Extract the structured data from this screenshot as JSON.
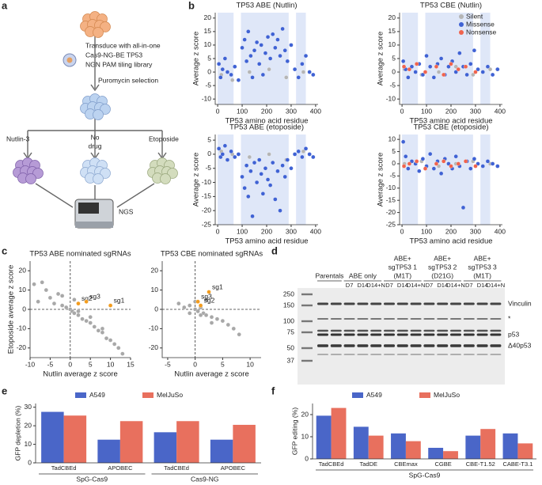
{
  "panel_labels": [
    "a",
    "b",
    "c",
    "d",
    "e",
    "f"
  ],
  "diagram": {
    "transduce": [
      "Transduce with all-in-one",
      "Cas9-NG-BE TP53",
      "NGN PAM tiling library"
    ],
    "selection": "Puromycin selection",
    "branches": [
      [
        "Nutlin-3"
      ],
      [
        "No",
        "drug"
      ],
      [
        "Etoposide"
      ]
    ],
    "readout": "NGS"
  },
  "blot": {
    "groups": [
      [
        "Parentals"
      ],
      [
        "ABE only"
      ],
      [
        "ABE+",
        "sgTP53 1",
        "(M1T)"
      ],
      [
        "ABE+",
        "sgTP53 2",
        "(D21G)"
      ],
      [
        "ABE+",
        "sgTP53 3",
        "(M1T)"
      ]
    ],
    "lane_labels": [
      "D7",
      "D14",
      "D14+N"
    ],
    "markers": [
      250,
      150,
      100,
      75,
      50,
      37
    ],
    "bands": [
      "Vinculin",
      "*",
      "p53",
      "Δ40p53"
    ]
  },
  "chart_data": [
    {
      "type": "scatter",
      "title": "TP53 ABE (Nutlin)",
      "x_label": "TP53 amino acid residue",
      "y_label": "Average z score",
      "xlim": [
        -10,
        410
      ],
      "xticks": [
        0,
        100,
        200,
        300,
        400
      ],
      "ylim": [
        -12,
        22
      ],
      "yticks": [
        -10,
        -5,
        0,
        5,
        10,
        15,
        20
      ],
      "shaded": [
        [
          0,
          65
        ],
        [
          95,
          290
        ],
        [
          320,
          360
        ]
      ],
      "shade_color": "#dfe7f8",
      "series": [
        {
          "color": "#b5b5b5",
          "x": [
            15,
            60,
            130,
            210,
            280,
            350
          ],
          "y": [
            -1,
            -3,
            0,
            1,
            -2,
            0
          ]
        },
        {
          "color": "#3f62d4",
          "x": [
            5,
            12,
            20,
            30,
            40,
            55,
            70,
            85,
            100,
            110,
            118,
            125,
            135,
            142,
            150,
            160,
            170,
            178,
            185,
            195,
            205,
            215,
            225,
            235,
            245,
            255,
            265,
            275,
            285,
            300,
            315,
            330,
            345,
            360,
            375,
            390
          ],
          "y": [
            3,
            -2,
            1,
            5,
            0,
            -1,
            2,
            -3,
            9,
            12,
            4,
            15,
            6,
            -2,
            8,
            11,
            3,
            10,
            -1,
            7,
            13,
            5,
            14,
            9,
            12,
            6,
            16,
            8,
            4,
            10,
            1,
            -2,
            3,
            6,
            0,
            -1
          ]
        }
      ]
    },
    {
      "type": "scatter",
      "title": "TP53 CBE (Nutlin)",
      "x_label": "TP53 amino acid residue",
      "y_label": "Average z score",
      "xlim": [
        -10,
        410
      ],
      "xticks": [
        0,
        100,
        200,
        300,
        400
      ],
      "ylim": [
        -12,
        22
      ],
      "yticks": [
        -10,
        -5,
        0,
        5,
        10,
        15,
        20
      ],
      "shaded": [
        [
          0,
          65
        ],
        [
          95,
          290
        ],
        [
          320,
          360
        ]
      ],
      "shade_color": "#dfe7f8",
      "series": [
        {
          "name": "Silent",
          "color": "#b5b5b5",
          "x": [
            10,
            80,
            150,
            220,
            290,
            360
          ],
          "y": [
            1,
            -1,
            0,
            2,
            -1,
            1
          ]
        },
        {
          "name": "Missense",
          "color": "#3f62d4",
          "x": [
            5,
            15,
            25,
            40,
            55,
            70,
            85,
            100,
            115,
            130,
            145,
            160,
            175,
            190,
            205,
            220,
            235,
            250,
            265,
            280,
            295,
            310,
            330,
            350,
            370,
            390
          ],
          "y": [
            4,
            1,
            -2,
            2,
            0,
            3,
            -1,
            6,
            2,
            -2,
            3,
            5,
            -1,
            2,
            4,
            0,
            7,
            2,
            -1,
            3,
            8,
            1,
            0,
            2,
            -1,
            1
          ]
        },
        {
          "name": "Nonsense",
          "color": "#f0644e",
          "x": [
            8,
            30,
            60,
            95,
            140,
            170,
            200,
            230,
            260,
            300
          ],
          "y": [
            2,
            1,
            3,
            0,
            2,
            -1,
            3,
            1,
            2,
            0
          ]
        }
      ]
    },
    {
      "type": "scatter",
      "title": "TP53 ABE (etoposide)",
      "x_label": "TP53 amino acid residue",
      "y_label": "Average z score",
      "xlim": [
        -10,
        410
      ],
      "xticks": [
        0,
        100,
        200,
        300,
        400
      ],
      "ylim": [
        -25,
        7
      ],
      "yticks": [
        -25,
        -20,
        -15,
        -10,
        -5,
        0,
        5
      ],
      "shaded": [
        [
          0,
          65
        ],
        [
          95,
          290
        ],
        [
          320,
          360
        ]
      ],
      "shade_color": "#dfe7f8",
      "series": [
        {
          "color": "#b5b5b5",
          "x": [
            15,
            60,
            130,
            210,
            280,
            350
          ],
          "y": [
            1,
            0,
            -1,
            0,
            -2,
            1
          ]
        },
        {
          "color": "#3f62d4",
          "x": [
            5,
            12,
            20,
            30,
            40,
            55,
            70,
            85,
            100,
            110,
            118,
            125,
            135,
            142,
            150,
            160,
            170,
            178,
            185,
            195,
            205,
            215,
            225,
            235,
            245,
            255,
            265,
            275,
            285,
            300,
            315,
            330,
            345,
            360,
            375,
            390
          ],
          "y": [
            2,
            -1,
            0,
            3,
            -2,
            1,
            -1,
            0,
            -8,
            -12,
            -4,
            -15,
            -6,
            -22,
            -3,
            -10,
            -2,
            -7,
            -14,
            -5,
            -9,
            -11,
            -3,
            -16,
            -6,
            -20,
            -4,
            -8,
            -2,
            -5,
            0,
            1,
            -1,
            2,
            0,
            -1
          ]
        }
      ]
    },
    {
      "type": "scatter",
      "title": "TP53 CBE (etoposide)",
      "x_label": "TP53 amino acid residue",
      "y_label": "Average z score",
      "xlim": [
        -10,
        410
      ],
      "xticks": [
        0,
        100,
        200,
        300,
        400
      ],
      "ylim": [
        -25,
        12
      ],
      "yticks": [
        -25,
        -20,
        -15,
        -10,
        -5,
        0,
        5,
        10
      ],
      "shaded": [
        [
          0,
          65
        ],
        [
          95,
          290
        ],
        [
          320,
          360
        ]
      ],
      "shade_color": "#dfe7f8",
      "series": [
        {
          "color": "#b5b5b5",
          "x": [
            10,
            80,
            150,
            220,
            290,
            360
          ],
          "y": [
            0,
            1,
            -1,
            0,
            1,
            0
          ]
        },
        {
          "color": "#3f62d4",
          "x": [
            5,
            15,
            25,
            40,
            55,
            70,
            85,
            100,
            115,
            130,
            145,
            160,
            175,
            190,
            205,
            220,
            235,
            250,
            265,
            280,
            295,
            310,
            330,
            350,
            370,
            390
          ],
          "y": [
            9,
            3,
            -2,
            1,
            0,
            -3,
            2,
            -1,
            4,
            -2,
            1,
            -4,
            2,
            0,
            -2,
            3,
            -1,
            -18,
            1,
            -2,
            2,
            0,
            -1,
            1,
            0,
            -1
          ]
        },
        {
          "color": "#f0644e",
          "x": [
            8,
            30,
            60,
            95,
            140,
            170,
            200,
            230,
            260,
            300
          ],
          "y": [
            -1,
            0,
            1,
            -2,
            0,
            1,
            -1,
            0,
            1,
            -1
          ]
        }
      ]
    },
    {
      "type": "scatter",
      "title": "TP53 ABE nominated sgRNAs",
      "x_label": "Nutlin average z score",
      "y_label": "Etoposide average z score",
      "xlim": [
        -10,
        15
      ],
      "xticks": [
        -10,
        -5,
        0,
        5,
        10,
        15
      ],
      "ylim": [
        -25,
        25
      ],
      "yticks": [
        -20,
        -10,
        0,
        10,
        20
      ],
      "zero_lines": true,
      "series": [
        {
          "color": "#a8a8a8",
          "x": [
            -9,
            -8,
            -6,
            -5,
            -4,
            -3,
            -2,
            -1,
            0,
            0.5,
            1,
            2,
            3,
            4,
            5,
            6,
            7,
            8,
            9,
            10,
            11,
            12,
            13,
            1,
            -2,
            2,
            5,
            8,
            -7
          ],
          "y": [
            13,
            4,
            10,
            6,
            3,
            8,
            2,
            1,
            0,
            -1,
            -2,
            -3,
            -5,
            -6,
            -7,
            -9,
            -11,
            -12,
            -15,
            -16,
            -18,
            -20,
            -23,
            5,
            7,
            -1,
            -4,
            -10,
            14
          ]
        },
        {
          "color": "#f39c1e",
          "x": [
            2,
            4,
            10
          ],
          "y": [
            3,
            4,
            2
          ],
          "labels": [
            "sg2",
            "sg3",
            "sg1"
          ]
        }
      ]
    },
    {
      "type": "scatter",
      "title": "TP53 CBE nominated sgRNAs",
      "x_label": "Nutlin average z score",
      "xlim": [
        -6,
        12
      ],
      "xticks": [
        -5,
        0,
        5,
        10
      ],
      "ylim": [
        -25,
        25
      ],
      "yticks": [
        -20,
        -10,
        0,
        10,
        20
      ],
      "zero_lines": true,
      "series": [
        {
          "color": "#a8a8a8",
          "x": [
            -3,
            -2,
            -1,
            0,
            0.5,
            1,
            1.5,
            2,
            3,
            4,
            5,
            6,
            7,
            8,
            -1,
            0,
            1,
            2,
            3
          ],
          "y": [
            3,
            1,
            2,
            0,
            -1,
            1,
            -2,
            -3,
            -4,
            -5,
            -6,
            -8,
            -10,
            -13,
            -2,
            4,
            -3,
            5,
            -7
          ]
        },
        {
          "color": "#f39c1e",
          "x": [
            2.5,
            1,
            0.5
          ],
          "y": [
            9,
            2,
            4
          ],
          "labels": [
            "sg1",
            "sg2",
            "sg3"
          ]
        }
      ]
    },
    {
      "type": "bar",
      "y_label": "GFP depletion (%)",
      "categories": [
        "TadCBEd",
        "APOBEC",
        "TadCBEd",
        "APOBEC"
      ],
      "groups": [
        "SpG-Cas9",
        "Cas9-NG"
      ],
      "ylim": [
        0,
        32
      ],
      "yticks": [
        0,
        10,
        20,
        30
      ],
      "series": [
        {
          "name": "A549",
          "color": "#4a66c8",
          "values": [
            27.5,
            12.5,
            16.5,
            12.5
          ]
        },
        {
          "name": "MelJuSo",
          "color": "#e8705e",
          "values": [
            25.5,
            22.5,
            22.5,
            20.5
          ]
        }
      ]
    },
    {
      "type": "bar",
      "y_label": "GFP editing (%)",
      "categories": [
        "TadCBEd",
        "TadDE",
        "CBEmax",
        "CGBE",
        "CBE-T1.52",
        "CABE-T3.1"
      ],
      "groups": [
        "SpG-Cas9"
      ],
      "ylim": [
        0,
        25
      ],
      "yticks": [
        0,
        10,
        20
      ],
      "series": [
        {
          "name": "A549",
          "color": "#4a66c8",
          "values": [
            19.5,
            14.5,
            11.5,
            5,
            10.5,
            11.5
          ]
        },
        {
          "name": "MelJuSo",
          "color": "#e8705e",
          "values": [
            23,
            10.5,
            8,
            3.5,
            13.5,
            7
          ]
        }
      ]
    }
  ]
}
